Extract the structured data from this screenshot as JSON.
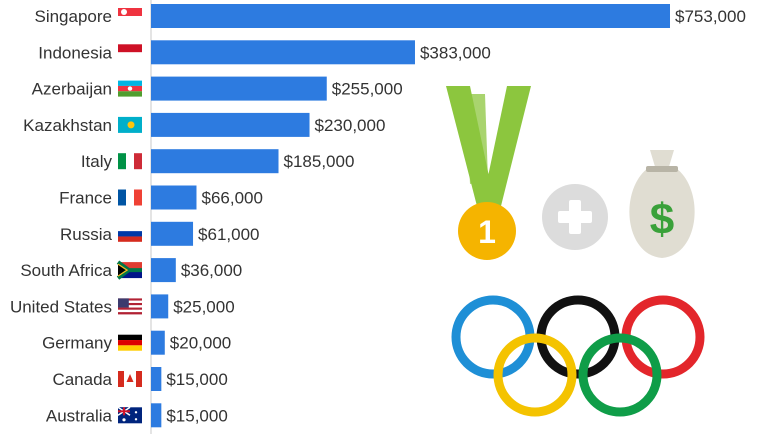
{
  "chart_data": {
    "type": "bar",
    "orientation": "horizontal",
    "categories": [
      "Singapore",
      "Indonesia",
      "Azerbaijan",
      "Kazakhstan",
      "Italy",
      "France",
      "Russia",
      "South Africa",
      "United States",
      "Germany",
      "Canada",
      "Australia"
    ],
    "values": [
      753000,
      383000,
      255000,
      230000,
      185000,
      66000,
      61000,
      36000,
      25000,
      20000,
      15000,
      15000
    ],
    "value_labels": [
      "$753,000",
      "$383,000",
      "$255,000",
      "$230,000",
      "$185,000",
      "$66,000",
      "$61,000",
      "$36,000",
      "$25,000",
      "$20,000",
      "$15,000",
      "$15,000"
    ],
    "flags": [
      "singapore",
      "indonesia",
      "azerbaijan",
      "kazakhstan",
      "italy",
      "france",
      "russia",
      "south-africa",
      "united-states",
      "germany",
      "canada",
      "australia"
    ],
    "bar_color": "#2d7be0",
    "xlim": [
      0,
      753000
    ],
    "grid": false,
    "legend": "none"
  },
  "illustration": {
    "medal_label": "1",
    "medal_color": "#f5b400",
    "ribbon_color": "#8cc63e",
    "plus_color": "#dcdcdc",
    "money_bag_symbol": "$",
    "money_bag_color": "#e0ddd2",
    "dollar_color": "#3aa13a",
    "ring_colors": [
      "#1e8fd6",
      "#111111",
      "#e3262b",
      "#f4c300",
      "#0f9d48"
    ]
  }
}
